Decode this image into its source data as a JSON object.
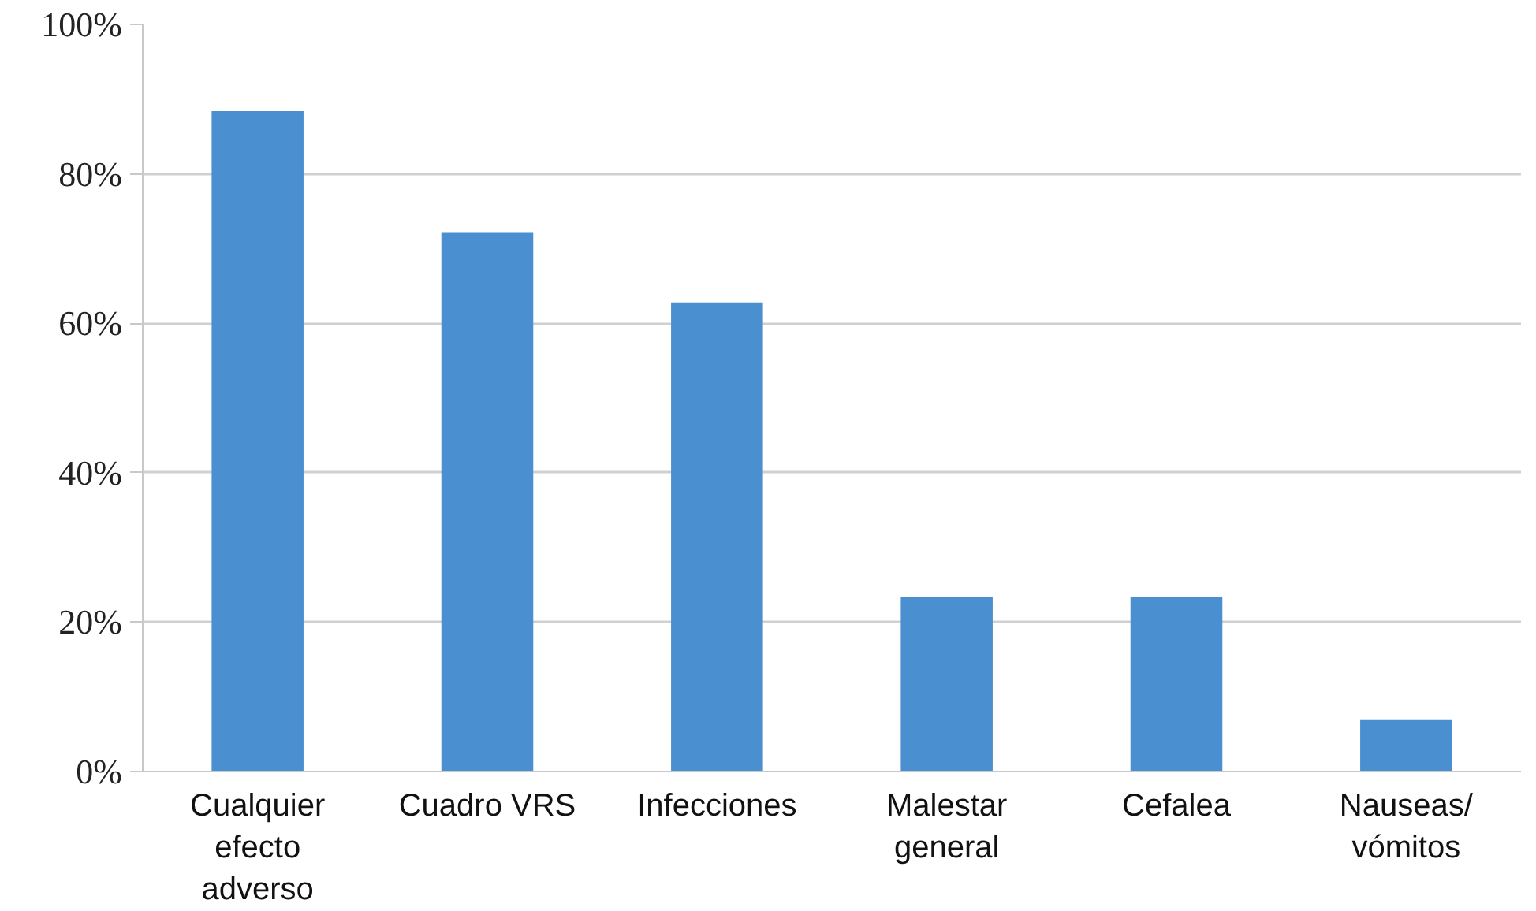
{
  "chart_data": {
    "type": "bar",
    "categories": [
      "Cualquier\nefecto\nadverso",
      "Cuadro VRS",
      "Infecciones",
      "Malestar\ngeneral",
      "Cefalea",
      "Nauseas/\nvómitos"
    ],
    "values": [
      88.4,
      72.1,
      62.8,
      23.3,
      23.3,
      7.0
    ],
    "color": "#4a8fcf",
    "ylim": [
      0,
      100
    ],
    "yticks": [
      {
        "value": 0,
        "label": "0%"
      },
      {
        "value": 20,
        "label": "20%"
      },
      {
        "value": 40,
        "label": "40%"
      },
      {
        "value": 60,
        "label": "60%"
      },
      {
        "value": 80,
        "label": "80%"
      },
      {
        "value": 100,
        "label": "100%"
      }
    ],
    "grid": "y"
  }
}
